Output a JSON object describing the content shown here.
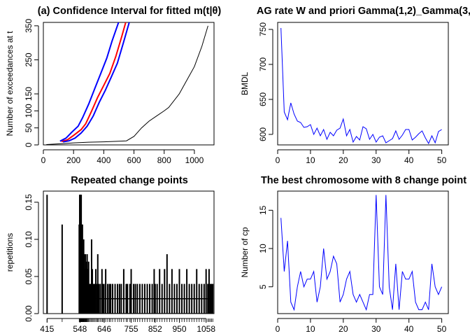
{
  "colors": {
    "black": "#000000",
    "red": "#ff0000",
    "blue": "#0000ff"
  },
  "chart_data": [
    {
      "type": "line",
      "title": "(a) Confidence Interval for fitted m(t|θ)",
      "xlabel": "",
      "ylabel": "Number of exceedances at t",
      "xlim": [
        0,
        1130
      ],
      "ylim": [
        0,
        360
      ],
      "x_ticks": [
        0,
        200,
        400,
        600,
        800,
        1000
      ],
      "y_ticks": [
        0,
        50,
        100,
        150,
        250,
        350
      ],
      "series": [
        {
          "style": "black",
          "points": [
            [
              20,
              1
            ],
            [
              100,
              3
            ],
            [
              200,
              6
            ],
            [
              300,
              8
            ],
            [
              400,
              9
            ],
            [
              500,
              11
            ],
            [
              550,
              12
            ],
            [
              600,
              25
            ],
            [
              650,
              50
            ],
            [
              700,
              70
            ],
            [
              750,
              85
            ],
            [
              800,
              100
            ],
            [
              830,
              110
            ],
            [
              900,
              150
            ],
            [
              950,
              190
            ],
            [
              1000,
              230
            ],
            [
              1050,
              290
            ],
            [
              1090,
              350
            ]
          ]
        },
        {
          "style": "red",
          "points": [
            [
              120,
              10
            ],
            [
              160,
              15
            ],
            [
              200,
              28
            ],
            [
              250,
              45
            ],
            [
              280,
              62
            ],
            [
              320,
              100
            ],
            [
              360,
              140
            ],
            [
              400,
              175
            ],
            [
              440,
              210
            ],
            [
              480,
              260
            ],
            [
              520,
              320
            ],
            [
              555,
              375
            ]
          ]
        },
        {
          "style": "blue",
          "points": [
            [
              110,
              11
            ],
            [
              150,
              20
            ],
            [
              190,
              38
            ],
            [
              230,
              55
            ],
            [
              260,
              80
            ],
            [
              300,
              120
            ],
            [
              340,
              165
            ],
            [
              380,
              210
            ],
            [
              420,
              255
            ],
            [
              455,
              305
            ],
            [
              490,
              350
            ],
            [
              525,
              395
            ]
          ]
        },
        {
          "style": "blue",
          "points": [
            [
              130,
              9
            ],
            [
              170,
              12
            ],
            [
              210,
              20
            ],
            [
              250,
              35
            ],
            [
              290,
              55
            ],
            [
              330,
              85
            ],
            [
              370,
              125
            ],
            [
              410,
              160
            ],
            [
              450,
              200
            ],
            [
              490,
              240
            ],
            [
              530,
              300
            ],
            [
              575,
              370
            ]
          ]
        }
      ]
    },
    {
      "type": "line",
      "title": "AG rate W and priori Gamma(1,2)_Gamma(3,",
      "xlabel": "",
      "ylabel": "BMDL",
      "xlim": [
        0,
        52
      ],
      "ylim": [
        585,
        760
      ],
      "x_ticks": [
        0,
        10,
        20,
        30,
        40,
        50
      ],
      "y_ticks": [
        600,
        650,
        700,
        750
      ],
      "series": [
        {
          "style": "blue",
          "x": [
            1,
            2,
            3,
            4,
            5,
            6,
            7,
            8,
            9,
            10,
            11,
            12,
            13,
            14,
            15,
            16,
            17,
            18,
            19,
            20,
            21,
            22,
            23,
            24,
            25,
            26,
            27,
            28,
            29,
            30,
            31,
            32,
            33,
            34,
            35,
            36,
            37,
            38,
            39,
            40,
            41,
            42,
            43,
            44,
            45,
            46,
            47,
            48,
            49,
            50
          ],
          "values": [
            752,
            632,
            621,
            645,
            629,
            619,
            617,
            610,
            611,
            614,
            600,
            609,
            598,
            607,
            593,
            603,
            598,
            606,
            609,
            622,
            598,
            607,
            589,
            597,
            592,
            611,
            608,
            593,
            600,
            589,
            596,
            598,
            588,
            591,
            594,
            605,
            593,
            599,
            607,
            607,
            592,
            596,
            601,
            605,
            595,
            587,
            598,
            588,
            604,
            607
          ]
        }
      ]
    },
    {
      "type": "bar",
      "title": "Repeated change points",
      "xlabel": "",
      "ylabel": "repetitions",
      "xlim": [
        400,
        1090
      ],
      "ylim": [
        0,
        0.165
      ],
      "x_ticks": [
        415,
        548,
        646,
        755,
        852,
        950,
        1058
      ],
      "y_ticks": [
        0.0,
        0.05,
        0.1,
        0.15
      ],
      "baseline_from": 548,
      "baseline_to": 1085,
      "baseline_value": 0.02,
      "x": [
        415,
        476,
        545,
        547,
        548,
        550,
        551,
        552,
        553,
        555,
        556,
        557,
        558,
        559,
        560,
        562,
        563,
        565,
        566,
        567,
        568,
        570,
        572,
        574,
        575,
        577,
        580,
        583,
        586,
        590,
        595,
        598,
        603,
        607,
        612,
        617,
        620,
        624,
        630,
        637,
        640,
        645,
        652,
        660,
        667,
        672,
        680,
        690,
        700,
        708,
        715,
        725,
        735,
        740,
        750,
        755,
        765,
        772,
        780,
        790,
        800,
        810,
        820,
        830,
        840,
        848,
        852,
        860,
        870,
        880,
        890,
        900,
        910,
        920,
        930,
        940,
        950,
        960,
        970,
        980,
        990,
        1000,
        1010,
        1020,
        1030,
        1040,
        1050,
        1058,
        1065,
        1070,
        1075,
        1080,
        1085
      ],
      "values": [
        0.16,
        0.12,
        0.12,
        0.16,
        0.16,
        0.16,
        0.14,
        0.16,
        0.16,
        0.12,
        0.08,
        0.1,
        0.12,
        0.08,
        0.06,
        0.08,
        0.1,
        0.08,
        0.06,
        0.04,
        0.06,
        0.08,
        0.07,
        0.06,
        0.04,
        0.08,
        0.06,
        0.07,
        0.04,
        0.04,
        0.1,
        0.06,
        0.04,
        0.04,
        0.06,
        0.04,
        0.08,
        0.04,
        0.04,
        0.06,
        0.04,
        0.04,
        0.06,
        0.04,
        0.04,
        0.04,
        0.04,
        0.04,
        0.04,
        0.04,
        0.04,
        0.06,
        0.04,
        0.04,
        0.04,
        0.06,
        0.04,
        0.04,
        0.04,
        0.04,
        0.04,
        0.04,
        0.04,
        0.04,
        0.04,
        0.06,
        0.04,
        0.04,
        0.06,
        0.04,
        0.06,
        0.08,
        0.04,
        0.06,
        0.04,
        0.04,
        0.06,
        0.04,
        0.04,
        0.06,
        0.04,
        0.04,
        0.04,
        0.06,
        0.04,
        0.04,
        0.04,
        0.06,
        0.04,
        0.06,
        0.04,
        0.04,
        0.04
      ]
    },
    {
      "type": "line",
      "title": "The best chromosome with 8 change point",
      "xlabel": "",
      "ylabel": "Number of cp",
      "xlim": [
        0,
        52
      ],
      "ylim": [
        1.5,
        17.5
      ],
      "x_ticks": [
        0,
        10,
        20,
        30,
        40,
        50
      ],
      "y_ticks": [
        5,
        10,
        15
      ],
      "series": [
        {
          "style": "blue",
          "x": [
            1,
            2,
            3,
            4,
            5,
            6,
            7,
            8,
            9,
            10,
            11,
            12,
            13,
            14,
            15,
            16,
            17,
            18,
            19,
            20,
            21,
            22,
            23,
            24,
            25,
            26,
            27,
            28,
            29,
            30,
            31,
            32,
            33,
            34,
            35,
            36,
            37,
            38,
            39,
            40,
            41,
            42,
            43,
            44,
            45,
            46,
            47,
            48,
            49,
            50
          ],
          "values": [
            14,
            7,
            11,
            3,
            2,
            5,
            7,
            5,
            6,
            6,
            7,
            3,
            5,
            10,
            6,
            7,
            9,
            8,
            3,
            4,
            6,
            7,
            4,
            3,
            4,
            3,
            2,
            4,
            4,
            17,
            5,
            4,
            17,
            5,
            2,
            8,
            2,
            7,
            6,
            6,
            7,
            3,
            2,
            2,
            3,
            2,
            8,
            5,
            4,
            5
          ]
        }
      ]
    }
  ]
}
